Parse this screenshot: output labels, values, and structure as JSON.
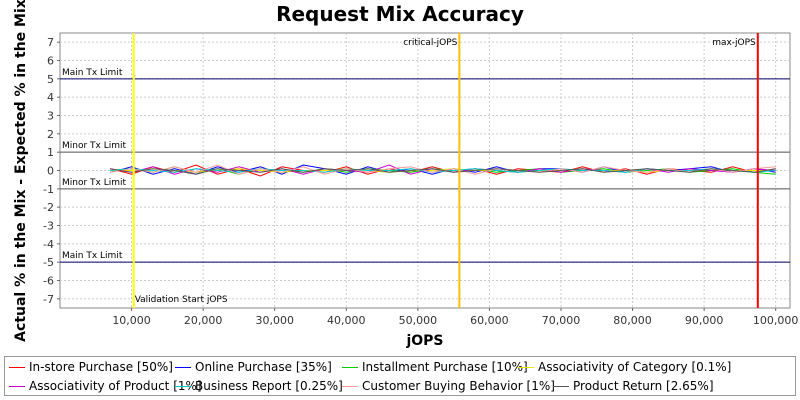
{
  "chart_data": {
    "type": "line",
    "title": "Request Mix Accuracy",
    "xlabel": "jOPS",
    "ylabel": "Actual % in the Mix - Expected % in the Mix",
    "xlim": [
      0,
      102000
    ],
    "ylim": [
      -7.5,
      7.5
    ],
    "x_ticks": [
      "10,000",
      "20,000",
      "30,000",
      "40,000",
      "50,000",
      "60,000",
      "70,000",
      "80,000",
      "90,000",
      "100,000"
    ],
    "y_ticks": [
      "7",
      "6",
      "5",
      "4",
      "3",
      "2",
      "1",
      "0",
      "-1",
      "-2",
      "-3",
      "-4",
      "-5",
      "-6",
      "-7"
    ],
    "grid": true,
    "legend_position": "bottom",
    "horizontal_lines": [
      {
        "label": "Main Tx Limit",
        "y": 5,
        "color": "#000066"
      },
      {
        "label": "Minor Tx Limit",
        "y": 1,
        "color": "#555555"
      },
      {
        "label": "Minor Tx Limit",
        "y": -1,
        "color": "#555555"
      },
      {
        "label": "Main Tx Limit",
        "y": -5,
        "color": "#000066"
      }
    ],
    "vertical_markers": [
      {
        "label": "Validation Start jOPS",
        "x": 10300,
        "color": "#ffff00"
      },
      {
        "label": "critical-jOPS",
        "x": 55800,
        "color": "#ffc000"
      },
      {
        "label": "max-jOPS",
        "x": 97500,
        "color": "#ff0000"
      }
    ],
    "series": [
      {
        "name": "In-store Purchase [50%]",
        "color": "#ff0000",
        "x": [
          7000,
          10000,
          13000,
          16000,
          19000,
          22000,
          25000,
          28000,
          31000,
          34000,
          37000,
          40000,
          43000,
          46000,
          49000,
          52000,
          55000,
          58000,
          61000,
          64000,
          67000,
          70000,
          73000,
          76000,
          79000,
          82000,
          85000,
          88000,
          91000,
          94000,
          97000,
          100000
        ],
        "values": [
          0.1,
          -0.2,
          0.2,
          -0.1,
          0.3,
          -0.2,
          0.1,
          -0.3,
          0.2,
          0.0,
          -0.1,
          0.2,
          -0.2,
          0.1,
          -0.1,
          0.2,
          -0.1,
          0.1,
          -0.2,
          0.1,
          0.0,
          -0.1,
          0.2,
          -0.1,
          0.1,
          -0.2,
          0.1,
          0.0,
          -0.1,
          0.2,
          -0.1,
          0.1
        ]
      },
      {
        "name": "Online Purchase [35%]",
        "color": "#0000ff",
        "x": [
          7000,
          10000,
          13000,
          16000,
          19000,
          22000,
          25000,
          28000,
          31000,
          34000,
          37000,
          40000,
          43000,
          46000,
          49000,
          52000,
          55000,
          58000,
          61000,
          64000,
          67000,
          70000,
          73000,
          76000,
          79000,
          82000,
          85000,
          88000,
          91000,
          94000,
          97000,
          100000
        ],
        "values": [
          -0.1,
          0.2,
          -0.2,
          0.1,
          -0.2,
          0.2,
          -0.1,
          0.2,
          -0.2,
          0.3,
          0.1,
          -0.2,
          0.2,
          -0.1,
          0.1,
          -0.2,
          0.1,
          -0.1,
          0.2,
          -0.1,
          0.1,
          0.1,
          -0.1,
          0.2,
          -0.1,
          0.1,
          0.0,
          0.1,
          0.2,
          -0.1,
          0.1,
          -0.1
        ]
      },
      {
        "name": "Installment Purchase [10%]",
        "color": "#00cc00",
        "x": [
          7000,
          10000,
          13000,
          16000,
          19000,
          22000,
          25000,
          28000,
          31000,
          34000,
          37000,
          40000,
          43000,
          46000,
          49000,
          52000,
          55000,
          58000,
          61000,
          64000,
          67000,
          70000,
          73000,
          76000,
          79000,
          82000,
          85000,
          88000,
          91000,
          94000,
          97000,
          100000
        ],
        "values": [
          0.0,
          0.1,
          -0.1,
          0.2,
          -0.1,
          0.1,
          -0.2,
          0.1,
          0.0,
          -0.1,
          0.1,
          -0.1,
          0.1,
          0.0,
          -0.1,
          0.1,
          0.0,
          0.1,
          -0.1,
          0.0,
          0.1,
          -0.1,
          0.0,
          0.1,
          -0.1,
          0.0,
          0.1,
          -0.1,
          0.0,
          0.1,
          -0.1,
          -0.2
        ]
      },
      {
        "name": "Associativity of Category [0.1%]",
        "color": "#e6e600",
        "x": [
          7000,
          10000,
          13000,
          16000,
          19000,
          22000,
          25000,
          28000,
          31000,
          34000,
          37000,
          40000,
          43000,
          46000,
          49000,
          52000,
          55000,
          58000,
          61000,
          64000,
          67000,
          70000,
          73000,
          76000,
          79000,
          82000,
          85000,
          88000,
          91000,
          94000,
          97000,
          100000
        ],
        "values": [
          0.0,
          0.0,
          0.1,
          0.0,
          -0.1,
          0.0,
          0.1,
          0.0,
          -0.1,
          0.0,
          0.0,
          0.1,
          0.0,
          -0.1,
          0.0,
          0.0,
          0.1,
          0.0,
          0.0,
          -0.1,
          0.0,
          0.0,
          0.1,
          0.0,
          0.0,
          -0.1,
          0.0,
          0.0,
          0.1,
          0.0,
          0.0,
          0.0
        ]
      },
      {
        "name": "Associativity of Product [1%]",
        "color": "#cc00cc",
        "x": [
          7000,
          10000,
          13000,
          16000,
          19000,
          22000,
          25000,
          28000,
          31000,
          34000,
          37000,
          40000,
          43000,
          46000,
          49000,
          52000,
          55000,
          58000,
          61000,
          64000,
          67000,
          70000,
          73000,
          76000,
          79000,
          82000,
          85000,
          88000,
          91000,
          94000,
          97000,
          100000
        ],
        "values": [
          0.1,
          -0.1,
          0.2,
          -0.2,
          0.1,
          -0.1,
          0.2,
          -0.1,
          0.1,
          -0.2,
          0.1,
          0.0,
          -0.1,
          0.3,
          -0.2,
          0.1,
          -0.1,
          0.1,
          0.0,
          -0.1,
          0.1,
          -0.1,
          0.1,
          0.0,
          -0.1,
          0.1,
          -0.1,
          0.1,
          0.0,
          -0.1,
          0.1,
          0.0
        ]
      },
      {
        "name": "Business Report [0.25%]",
        "color": "#00cccc",
        "x": [
          7000,
          10000,
          13000,
          16000,
          19000,
          22000,
          25000,
          28000,
          31000,
          34000,
          37000,
          40000,
          43000,
          46000,
          49000,
          52000,
          55000,
          58000,
          61000,
          64000,
          67000,
          70000,
          73000,
          76000,
          79000,
          82000,
          85000,
          88000,
          91000,
          94000,
          97000,
          100000
        ],
        "values": [
          0.0,
          0.1,
          0.0,
          -0.1,
          0.1,
          0.0,
          -0.1,
          0.1,
          0.0,
          0.0,
          -0.1,
          0.1,
          0.0,
          0.0,
          0.1,
          -0.1,
          0.0,
          0.1,
          0.0,
          -0.1,
          0.0,
          0.1,
          0.0,
          0.0,
          -0.1,
          0.1,
          0.0,
          0.0,
          0.1,
          0.0,
          -0.1,
          0.0
        ]
      },
      {
        "name": "Customer Buying Behavior [1%]",
        "color": "#ff9999",
        "x": [
          7000,
          10000,
          13000,
          16000,
          19000,
          22000,
          25000,
          28000,
          31000,
          34000,
          37000,
          40000,
          43000,
          46000,
          49000,
          52000,
          55000,
          58000,
          61000,
          64000,
          67000,
          70000,
          73000,
          76000,
          79000,
          82000,
          85000,
          88000,
          91000,
          94000,
          97000,
          100000
        ],
        "values": [
          -0.1,
          0.1,
          -0.1,
          0.2,
          -0.1,
          0.3,
          -0.2,
          0.1,
          -0.1,
          0.2,
          -0.2,
          0.1,
          -0.1,
          0.1,
          0.2,
          -0.1,
          0.1,
          -0.2,
          0.1,
          0.0,
          -0.1,
          0.1,
          -0.1,
          0.2,
          0.0,
          -0.1,
          0.1,
          -0.1,
          0.1,
          -0.1,
          0.1,
          0.2
        ]
      },
      {
        "name": "Product Return [2.65%]",
        "color": "#555555",
        "x": [
          7000,
          10000,
          13000,
          16000,
          19000,
          22000,
          25000,
          28000,
          31000,
          34000,
          37000,
          40000,
          43000,
          46000,
          49000,
          52000,
          55000,
          58000,
          61000,
          64000,
          67000,
          70000,
          73000,
          76000,
          79000,
          82000,
          85000,
          88000,
          91000,
          94000,
          97000,
          100000
        ],
        "values": [
          0.1,
          -0.1,
          0.1,
          0.0,
          -0.2,
          0.1,
          0.0,
          -0.1,
          0.1,
          -0.1,
          0.1,
          0.0,
          0.1,
          -0.1,
          0.0,
          0.1,
          -0.1,
          0.0,
          0.1,
          0.0,
          -0.1,
          0.0,
          0.1,
          -0.1,
          0.0,
          0.1,
          0.0,
          -0.1,
          0.1,
          0.0,
          -0.1,
          0.1
        ]
      }
    ]
  }
}
